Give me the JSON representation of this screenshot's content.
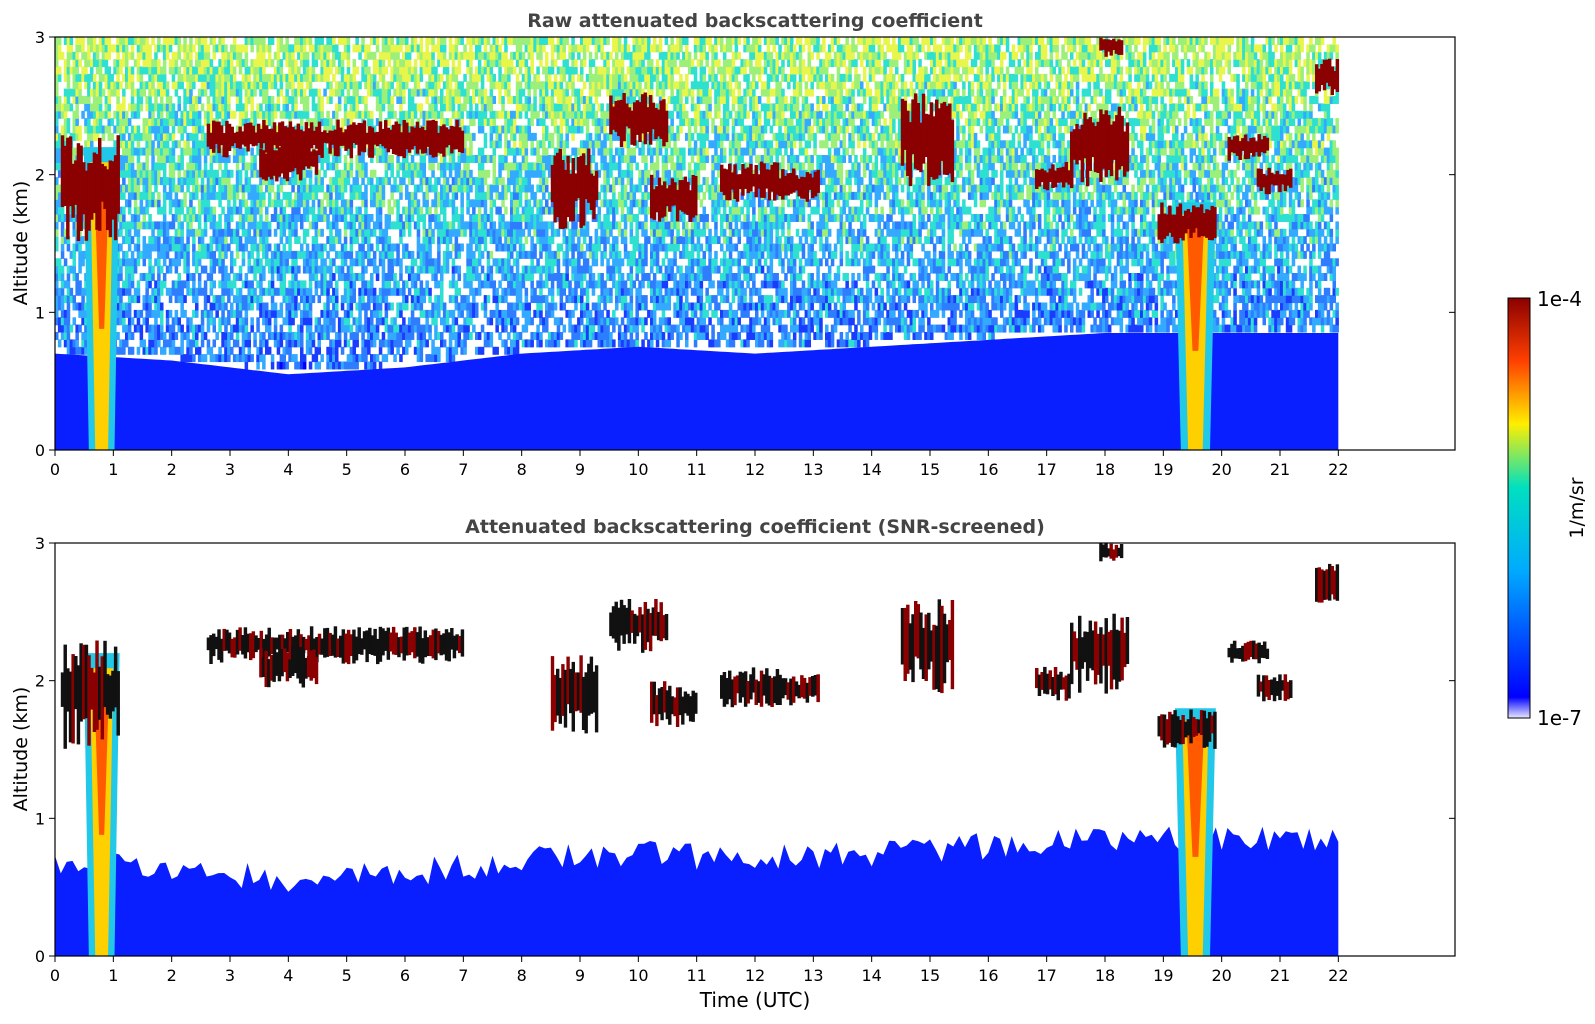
{
  "chart_data": [
    {
      "type": "heatmap",
      "title": "Raw attenuated backscattering coefficient",
      "xlabel": "",
      "ylabel": "Altitude (km)",
      "xlim": [
        0,
        24
      ],
      "ylim": [
        0,
        3
      ],
      "x_ticks": [
        0,
        1,
        2,
        3,
        4,
        5,
        6,
        7,
        8,
        9,
        10,
        11,
        12,
        13,
        14,
        15,
        16,
        17,
        18,
        19,
        20,
        21,
        22
      ],
      "y_ticks": [
        0,
        1,
        2,
        3
      ],
      "data_x_range": [
        0,
        22
      ],
      "grid": false,
      "layers": [
        {
          "kind": "boundary_layer",
          "points": [
            [
              0,
              0.7
            ],
            [
              2,
              0.65
            ],
            [
              4,
              0.55
            ],
            [
              6,
              0.6
            ],
            [
              8,
              0.7
            ],
            [
              10,
              0.75
            ],
            [
              12,
              0.7
            ],
            [
              14,
              0.75
            ],
            [
              16,
              0.8
            ],
            [
              18,
              0.85
            ],
            [
              20,
              0.85
            ],
            [
              22,
              0.85
            ]
          ]
        },
        {
          "kind": "plume",
          "center": 0.8,
          "half_width": 0.22,
          "top": 2.2
        },
        {
          "kind": "plume",
          "center": 19.55,
          "half_width": 0.25,
          "top": 1.8
        }
      ],
      "clouds": [
        {
          "x0": 2.6,
          "x1": 7.0,
          "y0": 2.12,
          "y1": 2.4
        },
        {
          "x0": 3.5,
          "x1": 4.5,
          "y0": 1.95,
          "y1": 2.25
        },
        {
          "x0": 0.1,
          "x1": 1.1,
          "y0": 1.5,
          "y1": 2.3
        },
        {
          "x0": 8.5,
          "x1": 9.3,
          "y0": 1.6,
          "y1": 2.2
        },
        {
          "x0": 9.5,
          "x1": 10.5,
          "y0": 2.2,
          "y1": 2.6
        },
        {
          "x0": 10.2,
          "x1": 11.0,
          "y0": 1.65,
          "y1": 2.0
        },
        {
          "x0": 11.4,
          "x1": 12.4,
          "y0": 1.8,
          "y1": 2.1
        },
        {
          "x0": 12.4,
          "x1": 13.1,
          "y0": 1.8,
          "y1": 2.05
        },
        {
          "x0": 14.5,
          "x1": 15.4,
          "y0": 1.9,
          "y1": 2.6
        },
        {
          "x0": 16.8,
          "x1": 17.4,
          "y0": 1.85,
          "y1": 2.1
        },
        {
          "x0": 17.4,
          "x1": 18.4,
          "y0": 1.9,
          "y1": 2.5
        },
        {
          "x0": 17.9,
          "x1": 18.3,
          "y0": 2.85,
          "y1": 3.0
        },
        {
          "x0": 18.9,
          "x1": 19.9,
          "y0": 1.5,
          "y1": 1.8
        },
        {
          "x0": 20.1,
          "x1": 20.8,
          "y0": 2.1,
          "y1": 2.3
        },
        {
          "x0": 20.6,
          "x1": 21.2,
          "y0": 1.85,
          "y1": 2.05
        },
        {
          "x0": 21.6,
          "x1": 22.0,
          "y0": 2.55,
          "y1": 2.85
        }
      ]
    },
    {
      "type": "heatmap",
      "title": "Attenuated backscattering coefficient (SNR-screened)",
      "xlabel": "Time (UTC)",
      "ylabel": "Altitude (km)",
      "xlim": [
        0,
        24
      ],
      "ylim": [
        0,
        3
      ],
      "x_ticks": [
        0,
        1,
        2,
        3,
        4,
        5,
        6,
        7,
        8,
        9,
        10,
        11,
        12,
        13,
        14,
        15,
        16,
        17,
        18,
        19,
        20,
        21,
        22
      ],
      "y_ticks": [
        0,
        1,
        2,
        3
      ],
      "data_x_range": [
        0,
        22
      ],
      "grid": false,
      "screened": true
    }
  ],
  "colorbar": {
    "label": "1/m/sr",
    "min_label": "1e-7",
    "max_label": "1e-4",
    "scale": "log",
    "range": [
      1e-07,
      0.0001
    ],
    "colors": [
      "#ffffff",
      "#0000ff",
      "#00c8ff",
      "#ffee00",
      "#ff5000",
      "#8b0000"
    ]
  }
}
